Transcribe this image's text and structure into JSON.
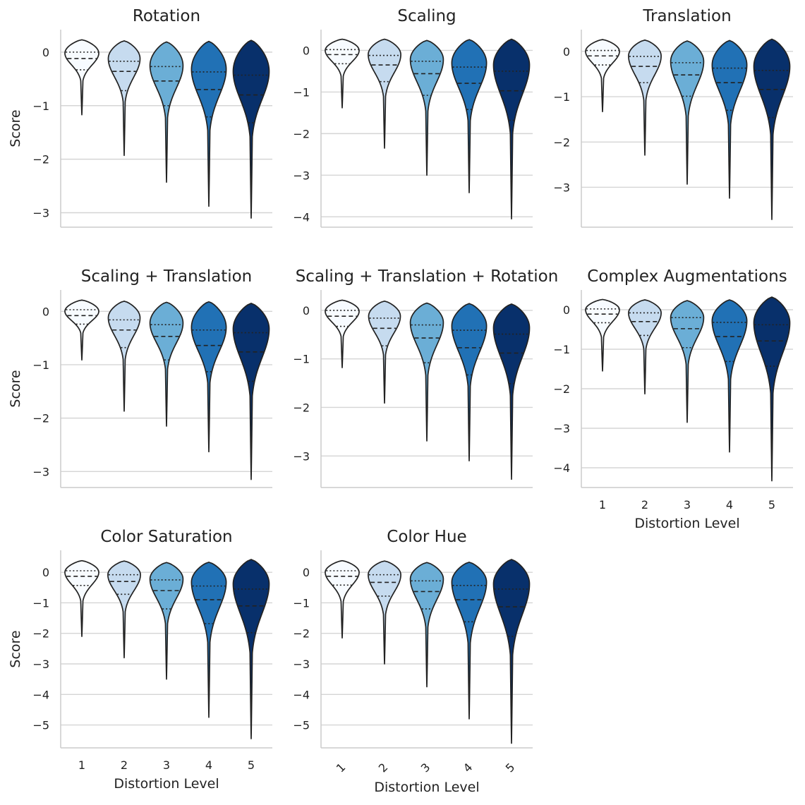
{
  "colors": {
    "levels": [
      "#f7fbff",
      "#c6dbef",
      "#6baed6",
      "#2171b5",
      "#08306b"
    ],
    "outline": "#222222",
    "grid": "#d5d5d5",
    "axis": "#cccccc"
  },
  "chart_data": [
    {
      "type": "violin",
      "title": "Rotation",
      "xlabel": "",
      "ylabel": "Score",
      "categories": [
        "1",
        "2",
        "3",
        "4",
        "5"
      ],
      "yticks": [
        0,
        -1,
        -2,
        -3
      ],
      "ylim": [
        -3.27,
        0.42
      ],
      "grid": true,
      "series": [
        {
          "top": 0.23,
          "min": -1.17,
          "q1": -0.33,
          "median": -0.12,
          "q3": 0.0,
          "width": 0.8,
          "mode": -0.02
        },
        {
          "top": 0.21,
          "min": -1.93,
          "q1": -0.72,
          "median": -0.36,
          "q3": -0.17,
          "width": 0.75,
          "mode": -0.12
        },
        {
          "top": 0.19,
          "min": -2.43,
          "q1": -1.0,
          "median": -0.54,
          "q3": -0.27,
          "width": 0.78,
          "mode": -0.25
        },
        {
          "top": 0.2,
          "min": -2.88,
          "q1": -1.21,
          "median": -0.7,
          "q3": -0.37,
          "width": 0.82,
          "mode": -0.32
        },
        {
          "top": 0.22,
          "min": -3.1,
          "q1": -1.32,
          "median": -0.8,
          "q3": -0.43,
          "width": 0.85,
          "mode": -0.36
        }
      ]
    },
    {
      "type": "violin",
      "title": "Scaling",
      "xlabel": "",
      "ylabel": "",
      "categories": [
        "1",
        "2",
        "3",
        "4",
        "5"
      ],
      "yticks": [
        0,
        -1,
        -2,
        -3,
        -4
      ],
      "ylim": [
        -4.25,
        0.5
      ],
      "grid": true,
      "series": [
        {
          "top": 0.27,
          "min": -1.38,
          "q1": -0.32,
          "median": -0.1,
          "q3": 0.02,
          "width": 0.8,
          "mode": 0.0
        },
        {
          "top": 0.27,
          "min": -2.35,
          "q1": -0.75,
          "median": -0.35,
          "q3": -0.12,
          "width": 0.77,
          "mode": -0.1
        },
        {
          "top": 0.24,
          "min": -3.0,
          "q1": -1.08,
          "median": -0.56,
          "q3": -0.26,
          "width": 0.78,
          "mode": -0.22
        },
        {
          "top": 0.26,
          "min": -3.42,
          "q1": -1.42,
          "median": -0.79,
          "q3": -0.4,
          "width": 0.82,
          "mode": -0.3
        },
        {
          "top": 0.27,
          "min": -4.05,
          "q1": -1.68,
          "median": -0.97,
          "q3": -0.5,
          "width": 0.85,
          "mode": -0.35
        }
      ]
    },
    {
      "type": "violin",
      "title": "Translation",
      "xlabel": "",
      "ylabel": "",
      "categories": [
        "1",
        "2",
        "3",
        "4",
        "5"
      ],
      "yticks": [
        0,
        -1,
        -2,
        -3
      ],
      "ylim": [
        -3.88,
        0.48
      ],
      "grid": true,
      "series": [
        {
          "top": 0.26,
          "min": -1.33,
          "q1": -0.3,
          "median": -0.1,
          "q3": 0.02,
          "width": 0.8,
          "mode": 0.0
        },
        {
          "top": 0.25,
          "min": -2.29,
          "q1": -0.69,
          "median": -0.33,
          "q3": -0.11,
          "width": 0.77,
          "mode": -0.1
        },
        {
          "top": 0.23,
          "min": -2.93,
          "q1": -0.99,
          "median": -0.52,
          "q3": -0.25,
          "width": 0.78,
          "mode": -0.22
        },
        {
          "top": 0.24,
          "min": -3.24,
          "q1": -1.3,
          "median": -0.69,
          "q3": -0.37,
          "width": 0.82,
          "mode": -0.3
        },
        {
          "top": 0.27,
          "min": -3.71,
          "q1": -1.46,
          "median": -0.84,
          "q3": -0.42,
          "width": 0.85,
          "mode": -0.33
        }
      ]
    },
    {
      "type": "violin",
      "title": "Scaling + Translation",
      "xlabel": "",
      "ylabel": "Score",
      "categories": [
        "1",
        "2",
        "3",
        "4",
        "5"
      ],
      "yticks": [
        0,
        -1,
        -2,
        -3
      ],
      "ylim": [
        -3.3,
        0.4
      ],
      "grid": true,
      "series": [
        {
          "top": 0.21,
          "min": -0.91,
          "q1": -0.24,
          "median": -0.08,
          "q3": 0.03,
          "width": 0.8,
          "mode": 0.0
        },
        {
          "top": 0.19,
          "min": -1.87,
          "q1": -0.68,
          "median": -0.35,
          "q3": -0.16,
          "width": 0.75,
          "mode": -0.12
        },
        {
          "top": 0.17,
          "min": -2.15,
          "q1": -0.91,
          "median": -0.47,
          "q3": -0.25,
          "width": 0.78,
          "mode": -0.22
        },
        {
          "top": 0.18,
          "min": -2.63,
          "q1": -1.13,
          "median": -0.64,
          "q3": -0.35,
          "width": 0.82,
          "mode": -0.3
        },
        {
          "top": 0.15,
          "min": -3.15,
          "q1": -1.31,
          "median": -0.76,
          "q3": -0.4,
          "width": 0.85,
          "mode": -0.33
        }
      ]
    },
    {
      "type": "violin",
      "title": "Scaling + Translation + Rotation",
      "xlabel": "",
      "ylabel": "",
      "categories": [
        "1",
        "2",
        "3",
        "4",
        "5"
      ],
      "yticks": [
        0,
        -1,
        -2,
        -3
      ],
      "ylim": [
        -3.65,
        0.42
      ],
      "grid": true,
      "series": [
        {
          "top": 0.21,
          "min": -1.18,
          "q1": -0.33,
          "median": -0.12,
          "q3": 0.0,
          "width": 0.8,
          "mode": -0.02
        },
        {
          "top": 0.19,
          "min": -1.91,
          "q1": -0.73,
          "median": -0.37,
          "q3": -0.16,
          "width": 0.75,
          "mode": -0.12
        },
        {
          "top": 0.15,
          "min": -2.69,
          "q1": -1.08,
          "median": -0.57,
          "q3": -0.3,
          "width": 0.78,
          "mode": -0.25
        },
        {
          "top": 0.14,
          "min": -3.1,
          "q1": -1.33,
          "median": -0.77,
          "q3": -0.41,
          "width": 0.82,
          "mode": -0.32
        },
        {
          "top": 0.13,
          "min": -3.48,
          "q1": -1.51,
          "median": -0.88,
          "q3": -0.49,
          "width": 0.85,
          "mode": -0.36
        }
      ]
    },
    {
      "type": "violin",
      "title": "Complex Augmentations",
      "xlabel": "Distortion Level",
      "ylabel": "",
      "categories": [
        "1",
        "2",
        "3",
        "4",
        "5"
      ],
      "yticks": [
        0,
        -1,
        -2,
        -3,
        -4
      ],
      "ylim": [
        -4.5,
        0.5
      ],
      "grid": true,
      "series": [
        {
          "top": 0.26,
          "min": -1.55,
          "q1": -0.33,
          "median": -0.11,
          "q3": 0.02,
          "width": 0.8,
          "mode": 0.0
        },
        {
          "top": 0.25,
          "min": -2.13,
          "q1": -0.65,
          "median": -0.3,
          "q3": -0.08,
          "width": 0.77,
          "mode": -0.08
        },
        {
          "top": 0.23,
          "min": -2.85,
          "q1": -0.96,
          "median": -0.48,
          "q3": -0.2,
          "width": 0.78,
          "mode": -0.2
        },
        {
          "top": 0.25,
          "min": -3.6,
          "q1": -1.31,
          "median": -0.68,
          "q3": -0.32,
          "width": 0.82,
          "mode": -0.28
        },
        {
          "top": 0.32,
          "min": -4.33,
          "q1": -1.43,
          "median": -0.79,
          "q3": -0.38,
          "width": 0.85,
          "mode": -0.33
        }
      ]
    },
    {
      "type": "violin",
      "title": "Color Saturation",
      "xlabel": "Distortion Level",
      "ylabel": "Score",
      "categories": [
        "1",
        "2",
        "3",
        "4",
        "5"
      ],
      "yticks": [
        0,
        -1,
        -2,
        -3,
        -4,
        -5
      ],
      "ylim": [
        -5.75,
        0.72
      ],
      "grid": true,
      "series": [
        {
          "top": 0.38,
          "min": -2.1,
          "q1": -0.43,
          "median": -0.13,
          "q3": 0.05,
          "width": 0.8,
          "mode": 0.0
        },
        {
          "top": 0.37,
          "min": -2.8,
          "q1": -0.72,
          "median": -0.3,
          "q3": -0.08,
          "width": 0.77,
          "mode": -0.08
        },
        {
          "top": 0.32,
          "min": -3.5,
          "q1": -1.2,
          "median": -0.6,
          "q3": -0.25,
          "width": 0.78,
          "mode": -0.22
        },
        {
          "top": 0.33,
          "min": -4.75,
          "q1": -1.68,
          "median": -0.9,
          "q3": -0.45,
          "width": 0.82,
          "mode": -0.32
        },
        {
          "top": 0.42,
          "min": -5.45,
          "q1": -1.98,
          "median": -1.1,
          "q3": -0.55,
          "width": 0.85,
          "mode": -0.38
        }
      ]
    },
    {
      "type": "violin",
      "title": "Color Hue",
      "xlabel": "Distortion Level",
      "ylabel": "",
      "categories": [
        "1",
        "2",
        "3",
        "4",
        "5"
      ],
      "yticks": [
        0,
        -1,
        -2,
        -3,
        -4,
        -5
      ],
      "ylim": [
        -5.75,
        0.72
      ],
      "grid": true,
      "series": [
        {
          "top": 0.38,
          "min": -2.15,
          "q1": -0.42,
          "median": -0.13,
          "q3": 0.05,
          "width": 0.8,
          "mode": 0.0
        },
        {
          "top": 0.37,
          "min": -3.0,
          "q1": -0.78,
          "median": -0.33,
          "q3": -0.08,
          "width": 0.77,
          "mode": -0.08
        },
        {
          "top": 0.32,
          "min": -3.75,
          "q1": -1.2,
          "median": -0.63,
          "q3": -0.28,
          "width": 0.78,
          "mode": -0.22
        },
        {
          "top": 0.33,
          "min": -4.8,
          "q1": -1.62,
          "median": -0.9,
          "q3": -0.43,
          "width": 0.82,
          "mode": -0.32
        },
        {
          "top": 0.42,
          "min": -5.6,
          "q1": -2.1,
          "median": -1.13,
          "q3": -0.55,
          "width": 0.85,
          "mode": -0.38
        }
      ]
    }
  ]
}
